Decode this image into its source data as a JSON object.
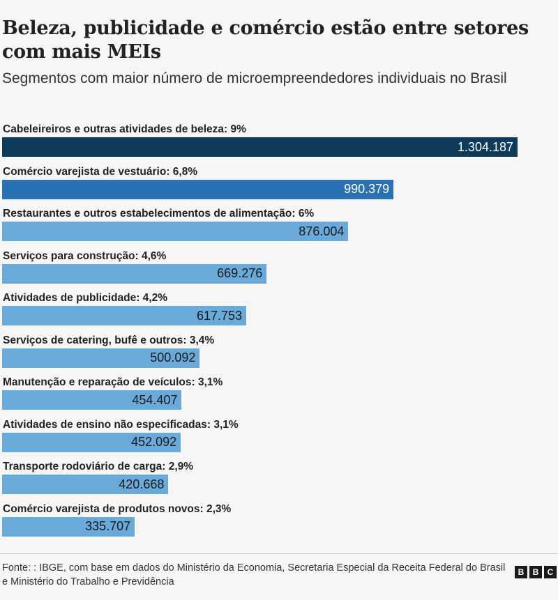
{
  "chart_data": {
    "type": "bar",
    "orientation": "horizontal",
    "title": "Beleza, publicidade e comércio estão entre setores com mais MEIs",
    "subtitle": "Segmentos com maior número de microempreendedores individuais no Brasil",
    "categories": [
      "Cabeleireiros e outras atividades de beleza: 9%",
      "Comércio varejista de vestuário: 6,8%",
      "Restaurantes e outros estabelecimentos de alimentação: 6%",
      "Serviços para construção: 4,6%",
      "Atividades de publicidade: 4,2%",
      "Serviços de catering, bufê e outros: 3,4%",
      "Manutenção e reparação de veículos: 3,1%",
      "Atividades de ensino não especificadas: 3,1%",
      "Transporte rodoviário de carga: 2,9%",
      "Comércio varejista de produtos novos: 2,3%"
    ],
    "values": [
      1304187,
      990379,
      876004,
      669276,
      617753,
      500092,
      454407,
      452092,
      420668,
      335707
    ],
    "value_labels": [
      "1.304.187",
      "990.379",
      "876.004",
      "669.276",
      "617.753",
      "500.092",
      "454.407",
      "452.092",
      "420.668",
      "335.707"
    ],
    "bar_colors": [
      "#0e3a5c",
      "#2a71b3",
      "#6aaadb",
      "#6aaadb",
      "#6aaadb",
      "#6aaadb",
      "#6aaadb",
      "#6aaadb",
      "#6aaadb",
      "#6aaadb"
    ],
    "label_colors": [
      "#ffffff",
      "#ffffff",
      "#1a1a1a",
      "#1a1a1a",
      "#1a1a1a",
      "#1a1a1a",
      "#1a1a1a",
      "#1a1a1a",
      "#1a1a1a",
      "#1a1a1a"
    ],
    "xlim": [
      0,
      1304187
    ],
    "grid": false
  },
  "footer": {
    "source": "Fonte: : IBGE, com base em dados do Ministério da Economia, Secretaria Especial da Receita Federal do Brasil e Ministério do Trabalho e Previdência",
    "logo": [
      "B",
      "B",
      "C"
    ]
  }
}
